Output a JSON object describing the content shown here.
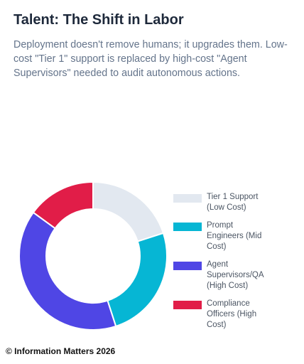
{
  "header": {
    "title": "Talent: The Shift in Labor",
    "subtitle": "Deployment doesn't remove humans; it upgrades them. Low-cost \"Tier 1\" support is replaced by high-cost \"Agent Supervisors\" needed to audit autonomous actions."
  },
  "chart_data": {
    "type": "pie",
    "variant": "doughnut",
    "legend_position": "right",
    "categories": [
      "Tier 1 Support (Low Cost)",
      "Prompt Engineers (Mid Cost)",
      "Agent Supervisors/QA (High Cost)",
      "Compliance Officers (High Cost)"
    ],
    "values": [
      20,
      25,
      40,
      15
    ],
    "colors": [
      "#e2e8f0",
      "#06b6d4",
      "#4f46e5",
      "#e11d48"
    ]
  },
  "footer": {
    "text": "© Information Matters 2026"
  }
}
